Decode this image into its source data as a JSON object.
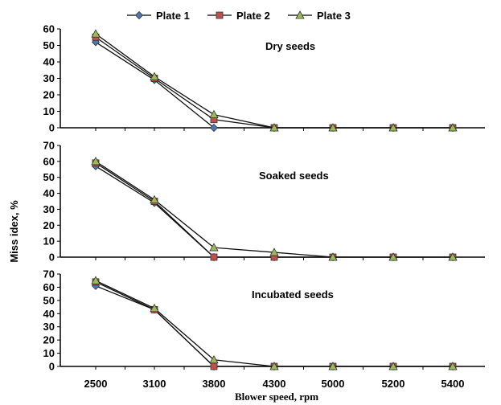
{
  "colors": {
    "plate1": "#4a78b0",
    "plate2": "#c0504d",
    "plate3": "#9bbb59",
    "axis": "#000000"
  },
  "chart_data": {
    "type": "line",
    "xlabel": "Blower speed, rpm",
    "ylabel": "Miss idex, %",
    "categories": [
      "2500",
      "3100",
      "3800",
      "4300",
      "5000",
      "5200",
      "5400"
    ],
    "legend": {
      "placement": "top-center",
      "entries": [
        {
          "name": "Plate 1",
          "marker": "diamond"
        },
        {
          "name": "Plate 2",
          "marker": "square"
        },
        {
          "name": "Plate 3",
          "marker": "triangle"
        }
      ]
    },
    "panels": [
      {
        "title": "Dry seeds",
        "ylim": [
          0,
          60
        ],
        "yticks": [
          "0",
          "10",
          "20",
          "30",
          "40",
          "50",
          "60"
        ],
        "series": [
          {
            "name": "Plate 1",
            "values": [
              52,
              29,
              0,
              0,
              0,
              0,
              0
            ]
          },
          {
            "name": "Plate 2",
            "values": [
              55,
              30,
              5,
              0,
              0,
              0,
              0
            ]
          },
          {
            "name": "Plate 3",
            "values": [
              57,
              31,
              8,
              0,
              0,
              0,
              0
            ]
          }
        ]
      },
      {
        "title": "Soaked seeds",
        "ylim": [
          0,
          70
        ],
        "yticks": [
          "0",
          "10",
          "20",
          "30",
          "40",
          "50",
          "60",
          "70"
        ],
        "series": [
          {
            "name": "Plate 1",
            "values": [
              57,
              34,
              0,
              0,
              0,
              0,
              0
            ]
          },
          {
            "name": "Plate 2",
            "values": [
              59,
              35,
              0,
              0,
              0,
              0,
              0
            ]
          },
          {
            "name": "Plate 3",
            "values": [
              60,
              36,
              6,
              3,
              0,
              0,
              0
            ]
          }
        ]
      },
      {
        "title": "Incubated seeds",
        "ylim": [
          0,
          70
        ],
        "yticks": [
          "0",
          "10",
          "20",
          "30",
          "40",
          "50",
          "60",
          "70"
        ],
        "series": [
          {
            "name": "Plate 1",
            "values": [
              61,
              43,
              0,
              0,
              0,
              0,
              0
            ]
          },
          {
            "name": "Plate 2",
            "values": [
              64,
              43,
              0,
              0,
              0,
              0,
              0
            ]
          },
          {
            "name": "Plate 3",
            "values": [
              65,
              44,
              5,
              0,
              0,
              0,
              0
            ]
          }
        ]
      }
    ]
  }
}
